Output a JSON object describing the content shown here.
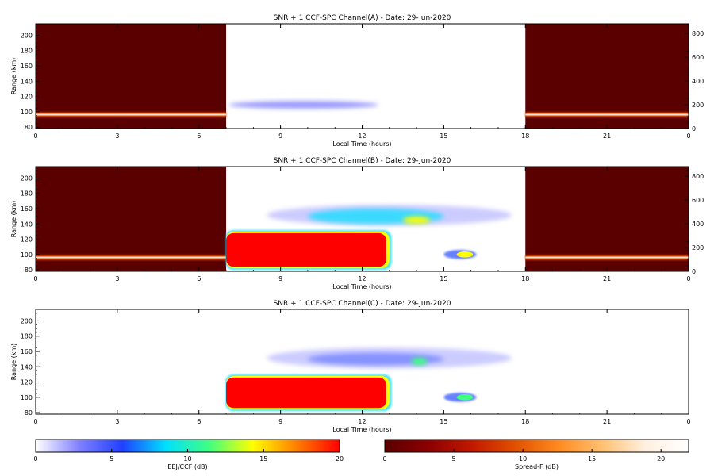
{
  "figure": {
    "panels": [
      {
        "title": "SNR + 1 CCF-SPC Channel(A) - Date: 29-Jun-2020",
        "xlabel": "Local Time (hours)",
        "ylabel": "Range (km)",
        "x_ticks": [
          "0",
          "3",
          "6",
          "9",
          "12",
          "15",
          "18",
          "21",
          "0"
        ],
        "y_ticks": [
          "80",
          "100",
          "120",
          "140",
          "160",
          "180",
          "200"
        ],
        "right_axis_ticks": [
          "0",
          "200",
          "400",
          "600",
          "800"
        ]
      },
      {
        "title": "SNR + 1 CCF-SPC Channel(B) - Date: 29-Jun-2020",
        "xlabel": "Local Time (hours)",
        "ylabel": "Range (km)",
        "x_ticks": [
          "0",
          "3",
          "6",
          "9",
          "12",
          "15",
          "18",
          "21",
          "0"
        ],
        "y_ticks": [
          "80",
          "100",
          "120",
          "140",
          "160",
          "180",
          "200"
        ],
        "right_axis_ticks": [
          "0",
          "200",
          "400",
          "600",
          "800"
        ]
      },
      {
        "title": "SNR + 1 CCF-SPC Channel(C) - Date: 29-Jun-2020",
        "xlabel": "Local Time (hours)",
        "ylabel": "Range (km)",
        "x_ticks": [
          "0",
          "3",
          "6",
          "9",
          "12",
          "15",
          "18",
          "21",
          "0"
        ],
        "y_ticks": [
          "80",
          "100",
          "120",
          "140",
          "160",
          "180",
          "200"
        ],
        "right_axis_ticks": []
      }
    ],
    "colorbars": [
      {
        "label": "EEJ/CCF (dB)",
        "ticks": [
          "0",
          "5",
          "10",
          "15",
          "20"
        ],
        "colors": [
          "#ffffff",
          "#8080ff",
          "#2040ff",
          "#00e0ff",
          "#40ff80",
          "#ffff00",
          "#ff8000",
          "#ff0000"
        ]
      },
      {
        "label": "Spread-F (dB)",
        "ticks": [
          "0",
          "5",
          "10",
          "15",
          "20"
        ],
        "colors": [
          "#5a0000",
          "#8c0000",
          "#c01800",
          "#e05000",
          "#ff8a20",
          "#ffc070",
          "#fff0e0",
          "#ffffff"
        ]
      }
    ]
  },
  "chart_data": [
    {
      "type": "heatmap",
      "title": "SNR + 1 CCF-SPC Channel(A) - Date: 29-Jun-2020",
      "xlabel": "Local Time (hours)",
      "ylabel": "Range (km)",
      "xlim": [
        0,
        24
      ],
      "ylim": [
        78,
        215
      ],
      "right_axis_range": [
        0,
        880
      ],
      "regions": [
        {
          "kind": "spread-f",
          "x": [
            0,
            7
          ],
          "y": [
            78,
            215
          ],
          "value_db": 1
        },
        {
          "kind": "spread-f",
          "x": [
            18,
            24
          ],
          "y": [
            78,
            215
          ],
          "value_db": 1
        },
        {
          "kind": "spread-f-layer",
          "x": [
            0,
            7
          ],
          "y": [
            93,
            99
          ],
          "value_db": 14
        },
        {
          "kind": "spread-f-layer",
          "x": [
            18,
            24
          ],
          "y": [
            93,
            99
          ],
          "value_db": 14
        },
        {
          "kind": "eej",
          "x": [
            7.1,
            12.6
          ],
          "y": [
            104,
            114
          ],
          "value_db": 3
        }
      ]
    },
    {
      "type": "heatmap",
      "title": "SNR + 1 CCF-SPC Channel(B) - Date: 29-Jun-2020",
      "xlabel": "Local Time (hours)",
      "ylabel": "Range (km)",
      "xlim": [
        0,
        24
      ],
      "ylim": [
        78,
        215
      ],
      "right_axis_range": [
        0,
        880
      ],
      "regions": [
        {
          "kind": "spread-f",
          "x": [
            0,
            7
          ],
          "y": [
            78,
            215
          ],
          "value_db": 1
        },
        {
          "kind": "spread-f",
          "x": [
            18,
            24
          ],
          "y": [
            78,
            215
          ],
          "value_db": 1
        },
        {
          "kind": "spread-f-layer",
          "x": [
            0,
            7
          ],
          "y": [
            93,
            99
          ],
          "value_db": 14
        },
        {
          "kind": "spread-f-layer",
          "x": [
            18,
            24
          ],
          "y": [
            93,
            99
          ],
          "value_db": 14
        },
        {
          "kind": "eej",
          "x": [
            7.0,
            13.0
          ],
          "y": [
            82,
            130
          ],
          "value_db": 20
        },
        {
          "kind": "ccf",
          "x": [
            8.5,
            17.5
          ],
          "y": [
            138,
            165
          ],
          "value_db": 4
        },
        {
          "kind": "ccf",
          "x": [
            10.0,
            15.0
          ],
          "y": [
            140,
            160
          ],
          "value_db": 9
        },
        {
          "kind": "ccf",
          "x": [
            13.5,
            14.5
          ],
          "y": [
            140,
            150
          ],
          "value_db": 15
        },
        {
          "kind": "eej",
          "x": [
            15.0,
            16.2
          ],
          "y": [
            94,
            106
          ],
          "value_db": 13
        }
      ]
    },
    {
      "type": "heatmap",
      "title": "SNR + 1 CCF-SPC Channel(C) - Date: 29-Jun-2020",
      "xlabel": "Local Time (hours)",
      "ylabel": "Range (km)",
      "xlim": [
        0,
        24
      ],
      "ylim": [
        78,
        215
      ],
      "regions": [
        {
          "kind": "eej",
          "x": [
            7.0,
            13.0
          ],
          "y": [
            84,
            128
          ],
          "value_db": 20
        },
        {
          "kind": "ccf",
          "x": [
            8.5,
            17.5
          ],
          "y": [
            138,
            165
          ],
          "value_db": 4
        },
        {
          "kind": "ccf",
          "x": [
            10.0,
            15.0
          ],
          "y": [
            142,
            158
          ],
          "value_db": 7
        },
        {
          "kind": "ccf",
          "x": [
            13.8,
            14.4
          ],
          "y": [
            142,
            152
          ],
          "value_db": 12
        },
        {
          "kind": "eej",
          "x": [
            15.0,
            16.2
          ],
          "y": [
            94,
            106
          ],
          "value_db": 12
        }
      ]
    }
  ]
}
